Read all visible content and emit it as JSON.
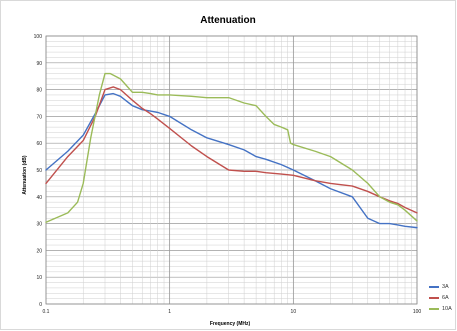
{
  "chart_data": {
    "type": "line",
    "title": "Attenuation",
    "xlabel": "Frequency (MHz)",
    "ylabel": "Attenuation (dB)",
    "xscale": "log",
    "xlim": [
      0.1,
      100
    ],
    "ylim": [
      0,
      100
    ],
    "x_ticks": [
      "0.1",
      "1",
      "10",
      "100"
    ],
    "y_ticks": [
      "0",
      "10",
      "20",
      "30",
      "40",
      "50",
      "60",
      "70",
      "80",
      "90",
      "100"
    ],
    "grid": true,
    "legend_position": "right",
    "series": [
      {
        "name": "3A",
        "color": "#4472c4",
        "x": [
          0.1,
          0.15,
          0.2,
          0.25,
          0.3,
          0.35,
          0.4,
          0.5,
          0.6,
          0.7,
          0.8,
          1,
          1.5,
          2,
          3,
          4,
          5,
          6,
          8,
          10,
          15,
          20,
          30,
          40,
          50,
          60,
          70,
          80,
          100
        ],
        "values": [
          50,
          57,
          63,
          71,
          78,
          78.5,
          77.5,
          74,
          72.5,
          72,
          71.5,
          70,
          65,
          62,
          59.5,
          57.5,
          55,
          54,
          52,
          50,
          46,
          43,
          40,
          32,
          30,
          30,
          29.5,
          29,
          28.5
        ]
      },
      {
        "name": "6A",
        "color": "#c0504d",
        "x": [
          0.1,
          0.15,
          0.2,
          0.25,
          0.3,
          0.35,
          0.4,
          0.5,
          0.6,
          0.7,
          0.8,
          1,
          1.5,
          2,
          3,
          4,
          5,
          6,
          8,
          10,
          15,
          20,
          30,
          40,
          50,
          60,
          70,
          80,
          100
        ],
        "values": [
          45,
          55,
          61,
          70,
          80,
          81,
          80,
          76,
          73,
          71,
          69,
          65.5,
          59,
          55,
          50,
          49.5,
          49.5,
          49,
          48.5,
          48,
          46,
          45,
          44,
          42,
          40,
          38.5,
          37.5,
          36,
          34
        ]
      },
      {
        "name": "10A",
        "color": "#9bbb59",
        "x": [
          0.1,
          0.15,
          0.18,
          0.2,
          0.23,
          0.27,
          0.3,
          0.33,
          0.4,
          0.5,
          0.6,
          0.7,
          0.8,
          1,
          1.5,
          2,
          3,
          4,
          5,
          6,
          7,
          8,
          9,
          9.5,
          10,
          15,
          20,
          30,
          40,
          50,
          60,
          70,
          80,
          100
        ],
        "values": [
          30.5,
          34,
          38,
          45,
          62,
          78,
          86,
          86,
          84,
          79,
          79,
          78.5,
          78,
          78,
          77.5,
          77,
          77,
          75,
          74,
          70,
          67,
          66,
          65,
          60,
          59.5,
          57,
          55,
          50,
          45,
          40,
          38,
          37,
          35,
          31
        ]
      }
    ]
  }
}
